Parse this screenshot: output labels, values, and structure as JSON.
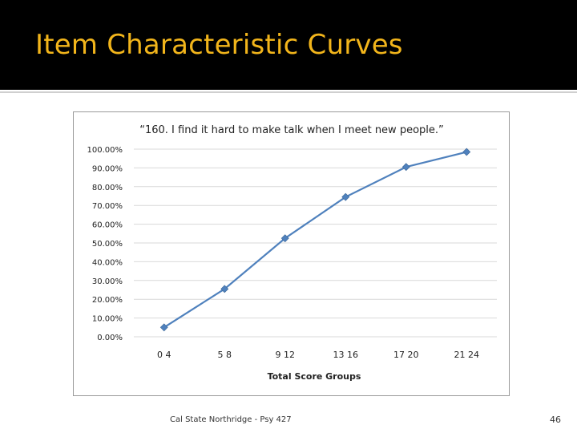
{
  "slide": {
    "title": "Item Characteristic Curves",
    "footer": "Cal State Northridge - Psy 427",
    "page_number": "46"
  },
  "colors": {
    "title_bar": "#000000",
    "title_text": "#f2b51b",
    "series_line": "#4f81bd",
    "gridline": "#d9d9d9"
  },
  "chart_data": {
    "type": "line",
    "title": "“160. I find it hard to make talk when I meet new people.”",
    "xlabel": "Total Score Groups",
    "ylabel": "",
    "categories": [
      "0 4",
      "5 8",
      "9 12",
      "13 16",
      "17 20",
      "21 24"
    ],
    "series": [
      {
        "values": [
          0.05,
          0.255,
          0.525,
          0.745,
          0.905,
          0.985
        ]
      }
    ],
    "ylim": [
      0,
      1
    ],
    "yticks": [
      "0.00%",
      "10.00%",
      "20.00%",
      "30.00%",
      "40.00%",
      "50.00%",
      "60.00%",
      "70.00%",
      "80.00%",
      "90.00%",
      "100.00%"
    ],
    "marker": "diamond",
    "grid": true,
    "legend": "none"
  }
}
